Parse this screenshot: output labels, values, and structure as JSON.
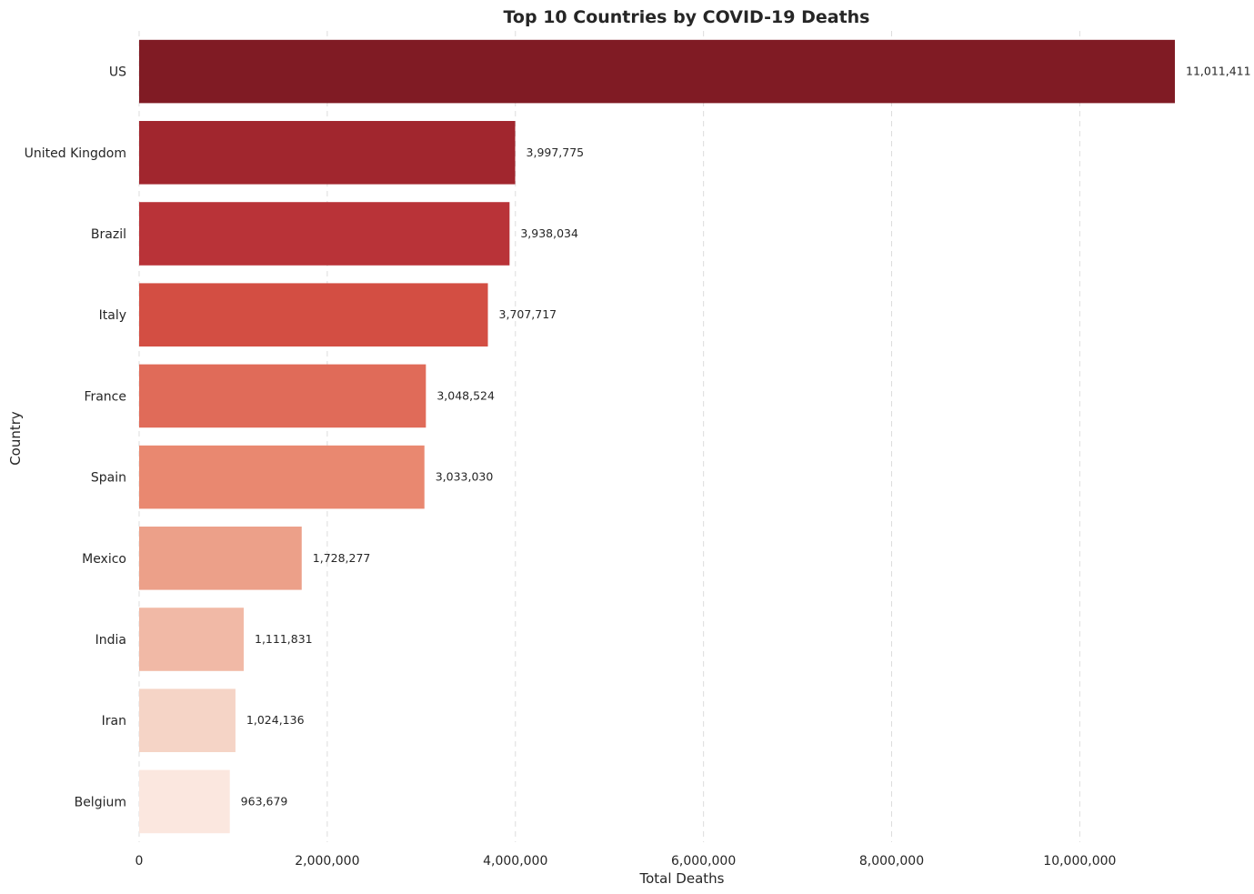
{
  "chart_data": {
    "type": "bar",
    "orientation": "horizontal",
    "title": "Top 10 Countries by COVID-19 Deaths",
    "xlabel": "Total Deaths",
    "ylabel": "Country",
    "categories": [
      "US",
      "United Kingdom",
      "Brazil",
      "Italy",
      "France",
      "Spain",
      "Mexico",
      "India",
      "Iran",
      "Belgium"
    ],
    "values": [
      11011411,
      3997775,
      3938034,
      3707717,
      3048524,
      3033030,
      1728277,
      1111831,
      1024136,
      963679
    ],
    "data_labels": [
      "11,011,411",
      "3,997,775",
      "3,938,034",
      "3,707,717",
      "3,048,524",
      "3,033,030",
      "1,728,277",
      "1,111,831",
      "1,024,136",
      "963,679"
    ],
    "colors": [
      "#801b24",
      "#a1262e",
      "#b93338",
      "#d34e43",
      "#e06b59",
      "#e98870",
      "#eca089",
      "#f1b9a6",
      "#f5d4c6",
      "#fbe7df"
    ],
    "xlim": [
      0,
      11011411
    ],
    "xticks": [
      0,
      2000000,
      4000000,
      6000000,
      8000000,
      10000000
    ],
    "xtick_labels": [
      "0",
      "2,000,000",
      "4,000,000",
      "6,000,000",
      "8,000,000",
      "10,000,000"
    ],
    "grid": "x, dashed",
    "legend": "none"
  }
}
